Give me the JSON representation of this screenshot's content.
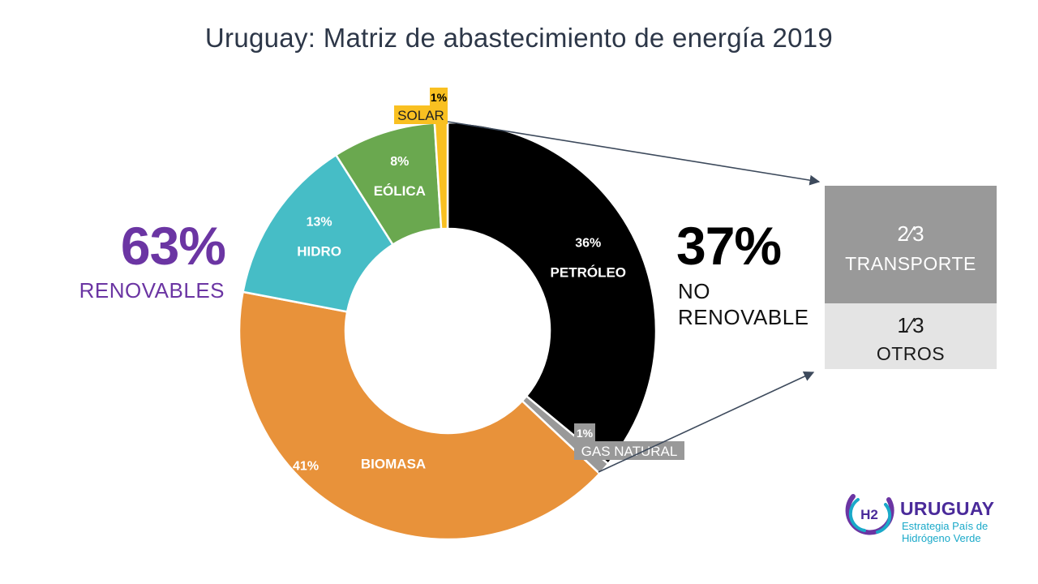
{
  "chart_data": {
    "type": "pie",
    "title": "Uruguay: Matriz de abastecimiento de energía 2019",
    "slices": [
      {
        "name": "PETRÓLEO",
        "label": "36%",
        "value": 36,
        "color": "#000000"
      },
      {
        "name": "GAS NATURAL",
        "label": "1%",
        "value": 1,
        "color": "#999999"
      },
      {
        "name": "BIOMASA",
        "label": "41%",
        "value": 41,
        "color": "#e8923a"
      },
      {
        "name": "HIDRO",
        "label": "13%",
        "value": 13,
        "color": "#46bdc6"
      },
      {
        "name": "EÓLICA",
        "label": "8%",
        "value": 8,
        "color": "#6aa84f"
      },
      {
        "name": "SOLAR",
        "label": "1%",
        "value": 1,
        "color": "#f9c021"
      }
    ]
  },
  "summary": {
    "renewable_pct": "63%",
    "renewable_label": "RENOVABLES",
    "nonrenewable_pct": "37%",
    "nonrenewable_line1": "NO",
    "nonrenewable_line2": "RENOVABLE"
  },
  "breakdown": {
    "top_frac": "2⁄3",
    "top_label": "TRANSPORTE",
    "bottom_frac": "1⁄3",
    "bottom_label": "OTROS"
  },
  "colors": {
    "renewable": "#6b35a3",
    "arrow": "#3d4a5c"
  },
  "logo": {
    "mark": "H2",
    "name": "URUGUAY",
    "sub_line1": "Estrategia País de",
    "sub_line2": "Hidrógeno Verde"
  }
}
